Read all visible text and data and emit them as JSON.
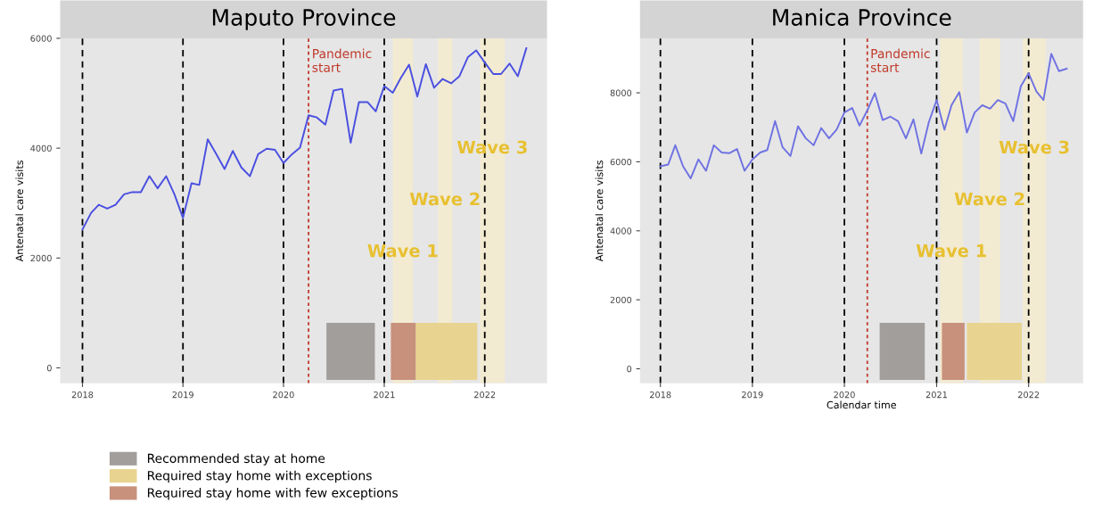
{
  "chart_data": [
    {
      "type": "line",
      "title": "Maputo Province",
      "ylabel": "Antenatal care visits",
      "x": [
        "2018-01",
        "2018-02",
        "2018-03",
        "2018-04",
        "2018-05",
        "2018-06",
        "2018-07",
        "2018-08",
        "2018-09",
        "2018-10",
        "2018-11",
        "2018-12",
        "2019-01",
        "2019-02",
        "2019-03",
        "2019-04",
        "2019-05",
        "2019-06",
        "2019-07",
        "2019-08",
        "2019-09",
        "2019-10",
        "2019-11",
        "2019-12",
        "2020-01",
        "2020-02",
        "2020-03",
        "2020-04",
        "2020-05",
        "2020-06",
        "2020-07",
        "2020-08",
        "2020-09",
        "2020-10",
        "2020-11",
        "2020-12",
        "2021-01",
        "2021-02",
        "2021-03",
        "2021-04",
        "2021-05",
        "2021-06",
        "2021-07",
        "2021-08",
        "2021-09",
        "2021-10",
        "2021-11",
        "2021-12",
        "2022-01",
        "2022-02",
        "2022-03",
        "2022-04",
        "2022-05",
        "2022-06"
      ],
      "series": [
        {
          "color": "#4a4fe0",
          "values": [
            2520,
            2820,
            2970,
            2900,
            2970,
            3160,
            3200,
            3200,
            3490,
            3270,
            3490,
            3160,
            2730,
            3360,
            3330,
            4160,
            3900,
            3620,
            3950,
            3650,
            3490,
            3890,
            3990,
            3970,
            3730,
            3890,
            4010,
            4600,
            4560,
            4430,
            5050,
            5080,
            4100,
            4840,
            4840,
            4670,
            5130,
            5010,
            5270,
            5520,
            4940,
            5530,
            5100,
            5260,
            5180,
            5310,
            5660,
            5780,
            5560,
            5350,
            5350,
            5540,
            5310,
            5820
          ]
        }
      ],
      "xlim": [
        "2017-10-12",
        "2022-08-15"
      ],
      "xticks": [
        {
          "value": "2018-01-01",
          "label": "2018"
        },
        {
          "value": "2019-01-01",
          "label": "2019"
        },
        {
          "value": "2020-01-01",
          "label": "2020"
        },
        {
          "value": "2021-01-01",
          "label": "2021"
        },
        {
          "value": "2022-01-01",
          "label": "2022"
        }
      ],
      "ylim": [
        -280,
        6000
      ],
      "yticks": [
        0,
        2000,
        4000,
        6000
      ],
      "grid": false,
      "legend": "bottom left",
      "ref_lines": [
        {
          "axis": "x",
          "value": "2018-01-01",
          "color": "#000000",
          "line_style": "dashed"
        },
        {
          "axis": "x",
          "value": "2019-01-01",
          "color": "#000000",
          "line_style": "dashed"
        },
        {
          "axis": "x",
          "value": "2020-01-01",
          "color": "#000000",
          "line_style": "dashed"
        },
        {
          "axis": "x",
          "value": "2021-01-01",
          "color": "#000000",
          "line_style": "dashed"
        },
        {
          "axis": "x",
          "value": "2022-01-01",
          "color": "#000000",
          "line_style": "dashed"
        },
        {
          "axis": "x",
          "value": "2020-04-01",
          "color": "#c0392b",
          "line_style": "dotted",
          "label": "Pandemic\nstart"
        }
      ],
      "bands": [
        {
          "axis": "x",
          "from": "2021-02-01",
          "to": "2021-04-15",
          "color": "#f2ebd2"
        },
        {
          "axis": "x",
          "from": "2021-07-15",
          "to": "2021-09-05",
          "color": "#f2ebd2"
        },
        {
          "axis": "x",
          "from": "2021-12-15",
          "to": "2022-03-15",
          "color": "#f2ebd2"
        },
        {
          "axis": "x",
          "from": "2020-06-05",
          "to": "2020-11-28",
          "color": "#a19e9c",
          "label": "Recommended stay at home"
        },
        {
          "axis": "x",
          "from": "2021-04-25",
          "to": "2021-12-05",
          "color": "#e8d490",
          "label": "Required stay home with exceptions"
        },
        {
          "axis": "x",
          "from": "2021-01-25",
          "to": "2021-04-25",
          "color": "#c8917c",
          "label": "Required stay home with few exceptions"
        }
      ],
      "annotations": [
        "Wave 1",
        "Wave 2",
        "Wave 3"
      ]
    },
    {
      "type": "line",
      "title": "Manica Province",
      "ylabel": "Antenatal care visits",
      "xlabel": "Calendar time",
      "x": [
        "2018-01",
        "2018-02",
        "2018-03",
        "2018-04",
        "2018-05",
        "2018-06",
        "2018-07",
        "2018-08",
        "2018-09",
        "2018-10",
        "2018-11",
        "2018-12",
        "2019-01",
        "2019-02",
        "2019-03",
        "2019-04",
        "2019-05",
        "2019-06",
        "2019-07",
        "2019-08",
        "2019-09",
        "2019-10",
        "2019-11",
        "2019-12",
        "2020-01",
        "2020-02",
        "2020-03",
        "2020-04",
        "2020-05",
        "2020-06",
        "2020-07",
        "2020-08",
        "2020-09",
        "2020-10",
        "2020-11",
        "2020-12",
        "2021-01",
        "2021-02",
        "2021-03",
        "2021-04",
        "2021-05",
        "2021-06",
        "2021-07",
        "2021-08",
        "2021-09",
        "2021-10",
        "2021-11",
        "2021-12",
        "2022-01",
        "2022-02",
        "2022-03",
        "2022-04",
        "2022-05",
        "2022-06"
      ],
      "series": [
        {
          "color": "#6f72e2",
          "values": [
            5870,
            5920,
            6480,
            5870,
            5520,
            6070,
            5740,
            6480,
            6270,
            6250,
            6370,
            5740,
            6070,
            6270,
            6340,
            7180,
            6420,
            6170,
            7030,
            6680,
            6480,
            6980,
            6680,
            6930,
            7430,
            7560,
            7050,
            7490,
            7990,
            7210,
            7310,
            7180,
            6680,
            7230,
            6240,
            7150,
            7790,
            6930,
            7640,
            8020,
            6850,
            7430,
            7640,
            7540,
            7790,
            7690,
            7180,
            8190,
            8570,
            8040,
            7790,
            9130,
            8630,
            8700
          ]
        }
      ],
      "xlim": [
        "2017-10-12",
        "2022-08-05"
      ],
      "xticks": [
        {
          "value": "2018-01-01",
          "label": "2018"
        },
        {
          "value": "2019-01-01",
          "label": "2019"
        },
        {
          "value": "2020-01-01",
          "label": "2020"
        },
        {
          "value": "2021-01-01",
          "label": "2021"
        },
        {
          "value": "2022-01-01",
          "label": "2022"
        }
      ],
      "ylim": [
        -420,
        9580
      ],
      "yticks": [
        0,
        2000,
        4000,
        6000,
        8000
      ],
      "grid": false,
      "ref_lines": [
        {
          "axis": "x",
          "value": "2018-01-01",
          "color": "#000000",
          "line_style": "dashed"
        },
        {
          "axis": "x",
          "value": "2019-01-01",
          "color": "#000000",
          "line_style": "dashed"
        },
        {
          "axis": "x",
          "value": "2020-01-01",
          "color": "#000000",
          "line_style": "dashed"
        },
        {
          "axis": "x",
          "value": "2021-01-01",
          "color": "#000000",
          "line_style": "dashed"
        },
        {
          "axis": "x",
          "value": "2022-01-01",
          "color": "#000000",
          "line_style": "dashed"
        },
        {
          "axis": "x",
          "value": "2020-04-01",
          "color": "#c0392b",
          "line_style": "dotted",
          "label": "Pandemic\nstart"
        }
      ],
      "bands": [
        {
          "axis": "x",
          "from": "2021-01-15",
          "to": "2021-04-15",
          "color": "#f2ebd2"
        },
        {
          "axis": "x",
          "from": "2021-06-20",
          "to": "2021-09-10",
          "color": "#f2ebd2"
        },
        {
          "axis": "x",
          "from": "2021-12-10",
          "to": "2022-03-10",
          "color": "#f2ebd2"
        },
        {
          "axis": "x",
          "from": "2020-05-20",
          "to": "2020-11-15",
          "color": "#a19e9c"
        },
        {
          "axis": "x",
          "from": "2021-01-22",
          "to": "2021-04-22",
          "color": "#c8917c"
        },
        {
          "axis": "x",
          "from": "2021-05-01",
          "to": "2021-12-05",
          "color": "#e8d490"
        }
      ],
      "annotations": [
        "Wave 1",
        "Wave 2",
        "Wave 3"
      ]
    }
  ]
}
